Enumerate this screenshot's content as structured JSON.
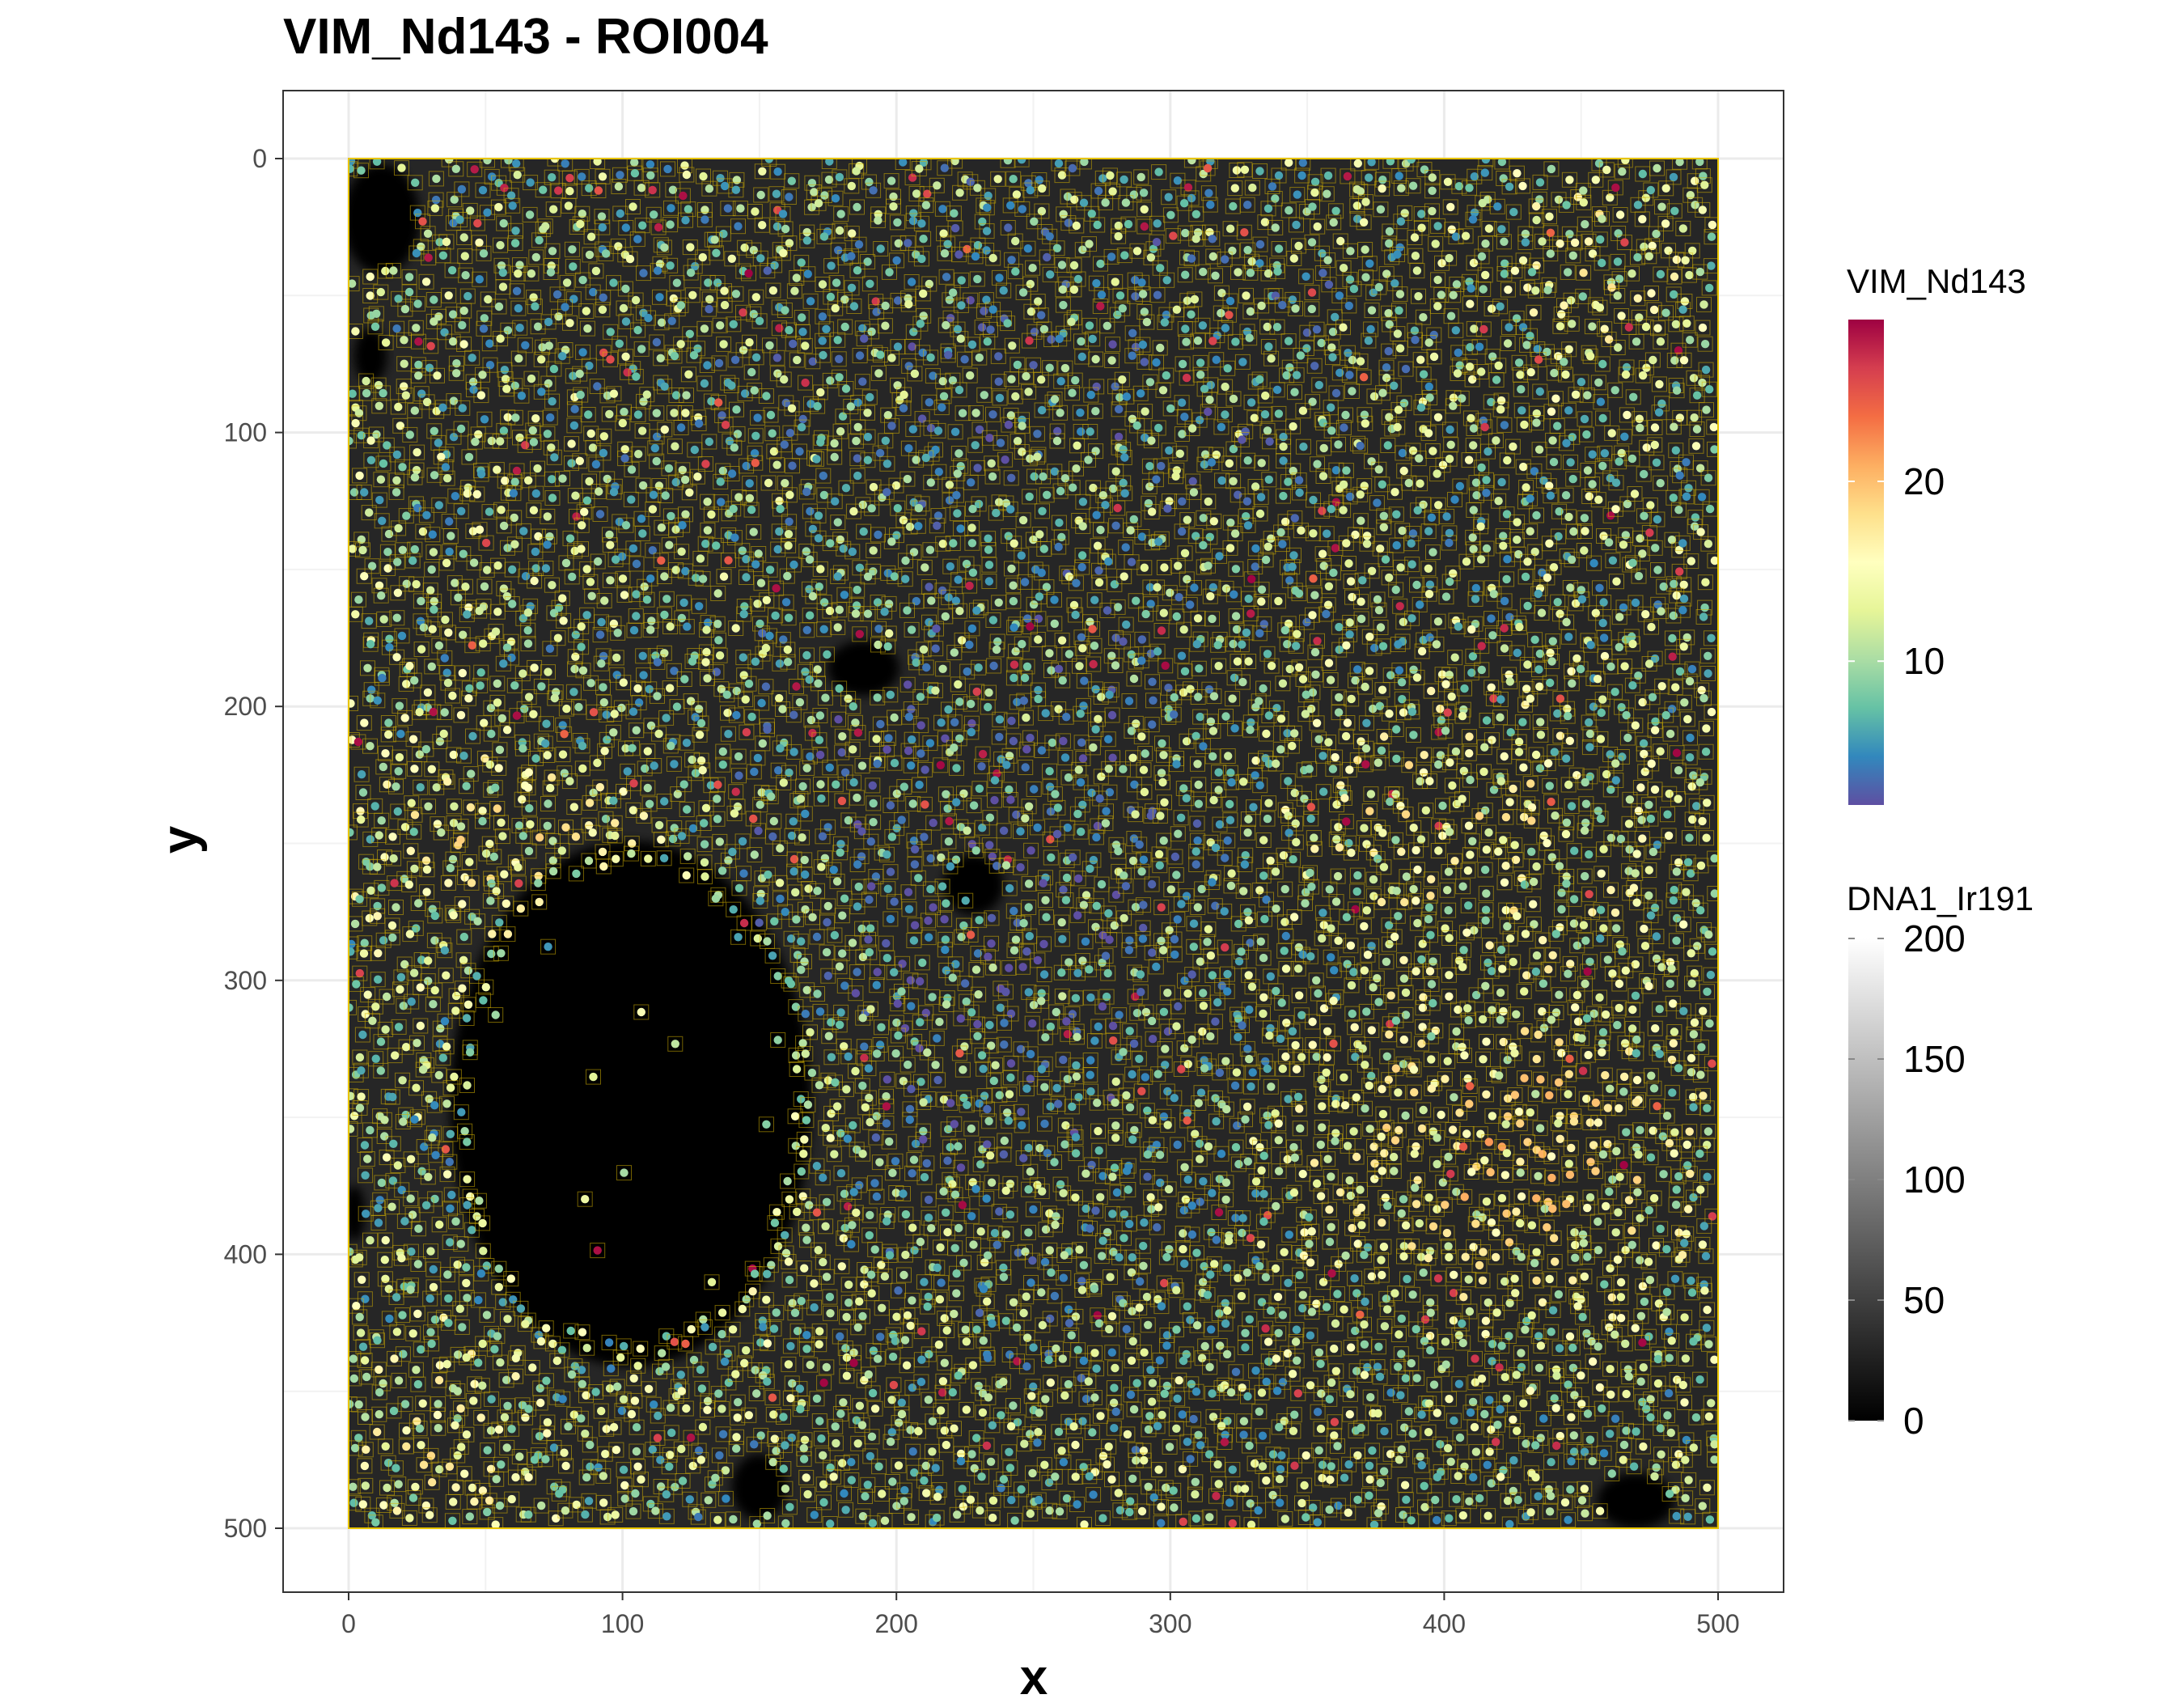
{
  "chart_data": {
    "type": "scatter",
    "title": "VIM_Nd143 - ROI004",
    "xlabel": "x",
    "ylabel": "y",
    "xlim": [
      -25,
      525
    ],
    "ylim": [
      525,
      -25
    ],
    "y_reversed": true,
    "xticks": [
      0,
      100,
      200,
      300,
      400,
      500
    ],
    "yticks": [
      0,
      100,
      200,
      300,
      400,
      500
    ],
    "grid": true,
    "image_extent": {
      "x": [
        0,
        500
      ],
      "y": [
        0,
        500
      ]
    },
    "dark_regions": [
      {
        "shape": "blob",
        "center": [
          103,
          345
        ],
        "radius": [
          66,
          96
        ],
        "note_hidden": ""
      },
      {
        "shape": "blob",
        "center": [
          188,
          186
        ],
        "radius": [
          13,
          10
        ]
      },
      {
        "shape": "blob",
        "center": [
          228,
          265
        ],
        "radius": [
          11,
          11
        ]
      },
      {
        "shape": "blob",
        "center": [
          12,
          22
        ],
        "radius": [
          14,
          20
        ]
      },
      {
        "shape": "blob",
        "center": [
          8,
          72
        ],
        "radius": [
          6,
          10
        ]
      },
      {
        "shape": "blob",
        "center": [
          150,
          485
        ],
        "radius": [
          10,
          12
        ]
      },
      {
        "shape": "blob",
        "center": [
          470,
          490
        ],
        "radius": [
          14,
          10
        ]
      },
      {
        "shape": "blob",
        "center": [
          2,
          385
        ],
        "radius": [
          4,
          10
        ]
      }
    ],
    "points_description": "segmented cells with mean VIM_Nd143 expression, approximately 7000 points covering the 0-500 region",
    "legends": [
      {
        "title": "VIM_Nd143",
        "type": "colorbar",
        "palette": [
          "#5E4FA2",
          "#3288BD",
          "#66C2A5",
          "#ABDDA4",
          "#E6F598",
          "#FFFFBF",
          "#FEE08B",
          "#FDAE61",
          "#F46D43",
          "#D53E4F",
          "#9E0142"
        ],
        "range": [
          2,
          29
        ],
        "ticks": [
          10,
          20
        ],
        "tick_labels": [
          "10",
          "20"
        ]
      },
      {
        "title": "DNA1_Ir191",
        "type": "colorbar",
        "palette": [
          "#000000",
          "#ffffff"
        ],
        "range": [
          0,
          200
        ],
        "ticks": [
          0,
          50,
          100,
          150,
          200
        ],
        "tick_labels": [
          "0",
          "50",
          "100",
          "150",
          "200"
        ]
      }
    ],
    "colors": {
      "outline": "#FFD700",
      "panel_border": "#333333",
      "grid": "#EBEBEB",
      "background": "#ffffff"
    }
  }
}
